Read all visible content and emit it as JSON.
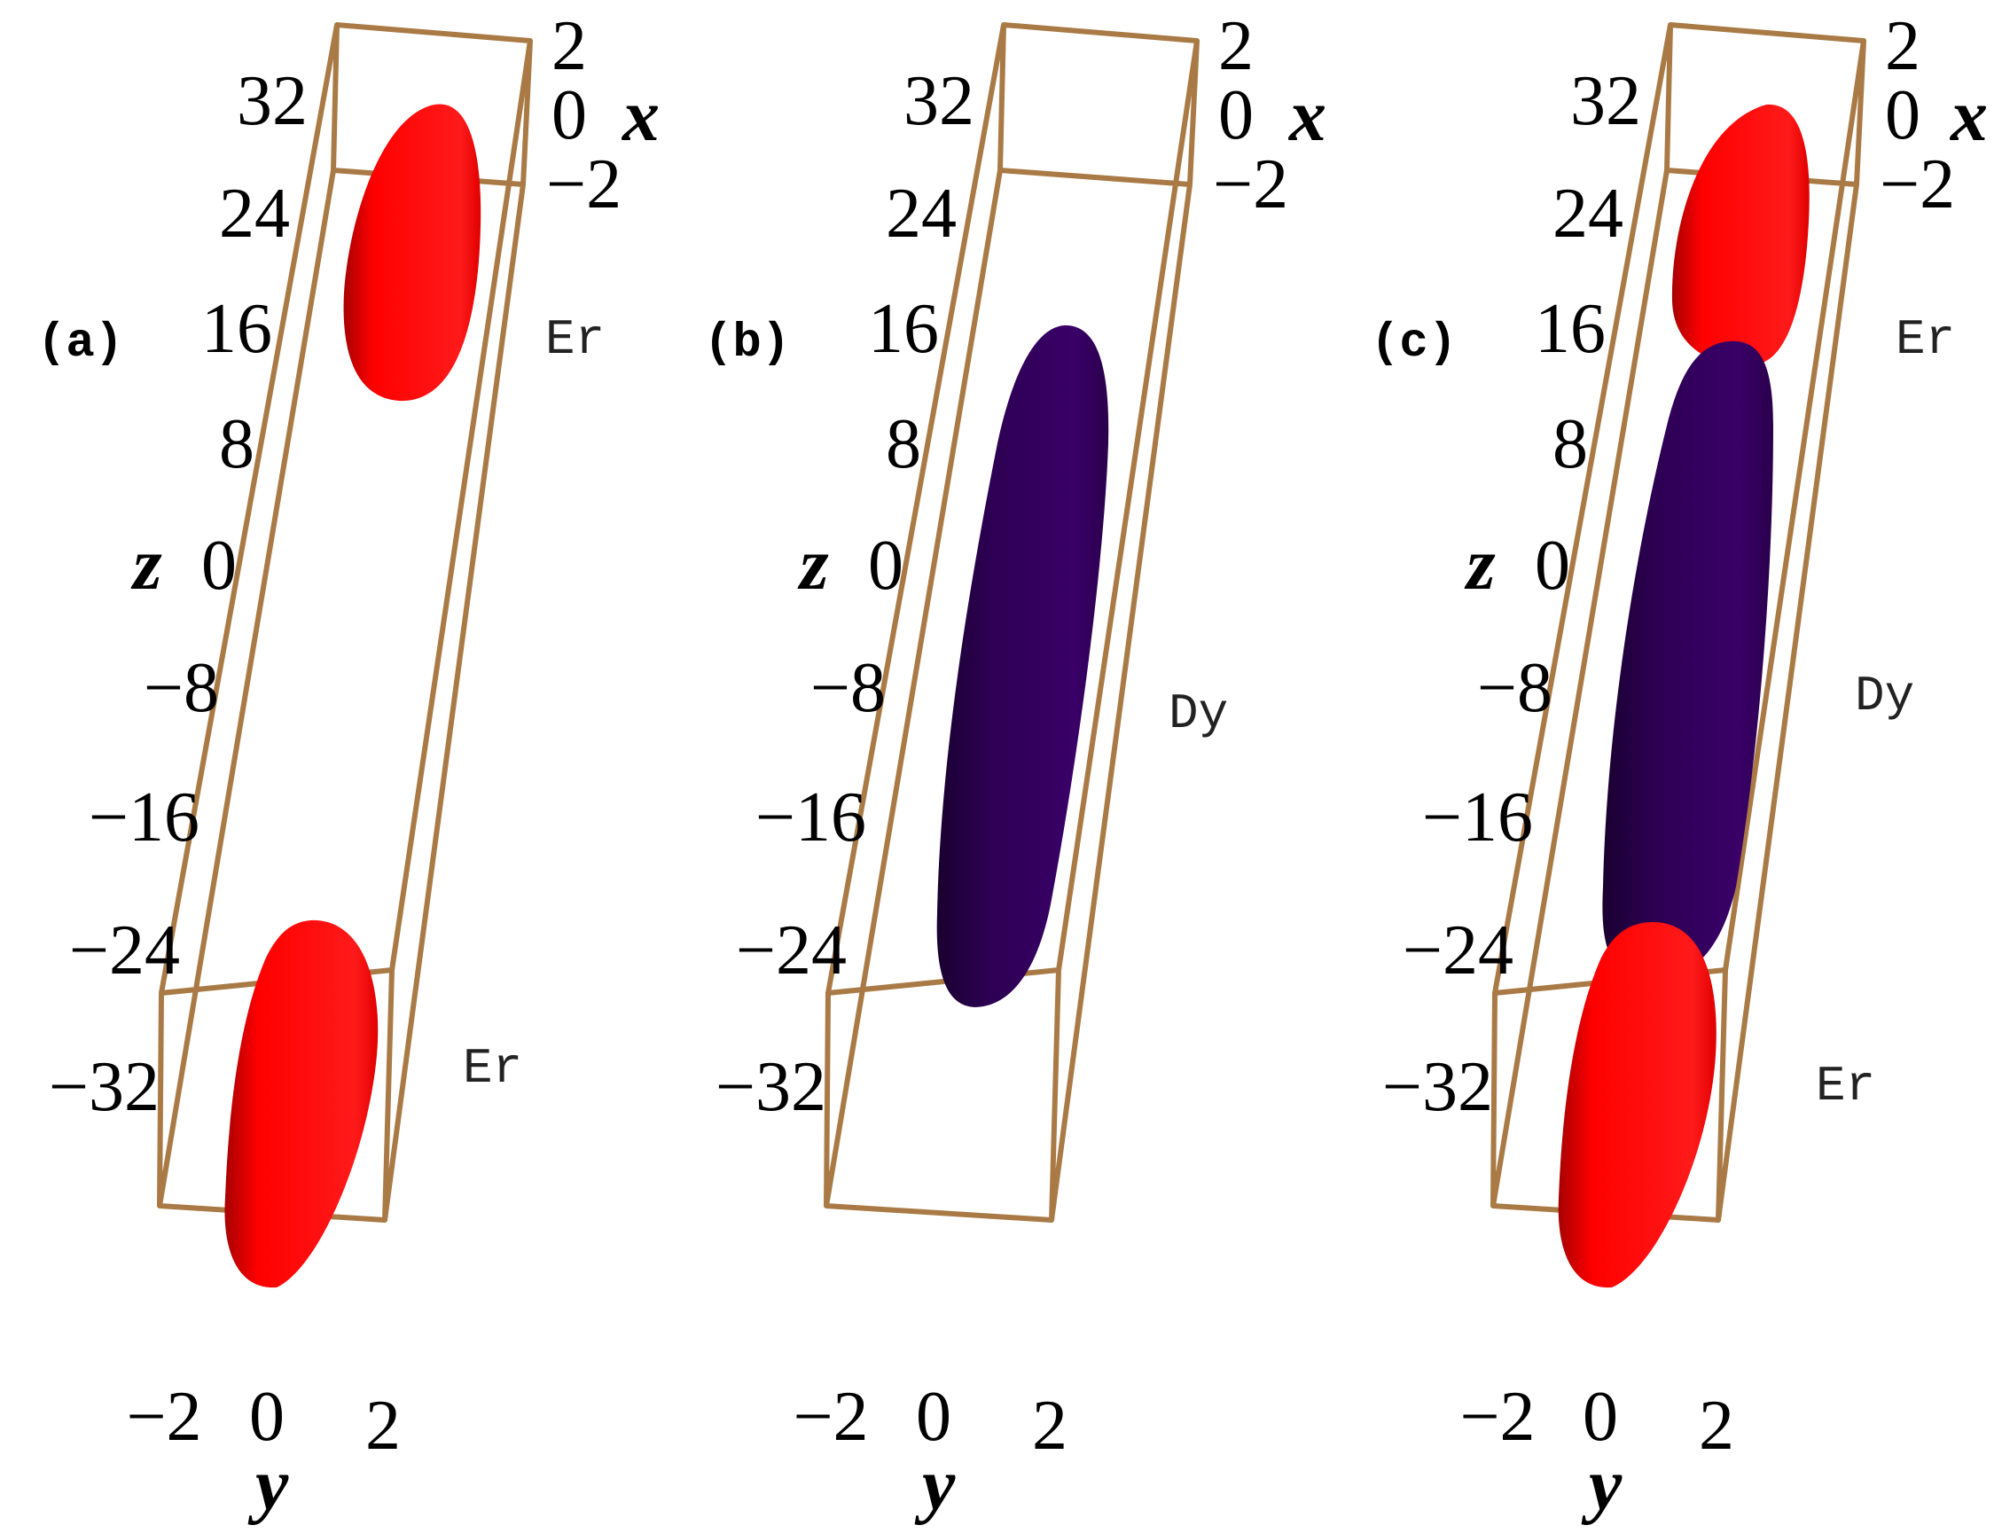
{
  "panels": [
    {
      "label": "(a)",
      "z_ticks": [
        "32",
        "24",
        "16",
        "8",
        "0",
        "−8",
        "−16",
        "−24",
        "−32"
      ],
      "x_ticks": [
        "2",
        "0",
        "−2"
      ],
      "y_ticks": [
        "−2",
        "0",
        "2"
      ],
      "z_label": "z",
      "x_label": "x",
      "y_label": "y",
      "species": [
        {
          "name": "Er",
          "color": "#ff0000",
          "z_range": [
            12,
            32
          ]
        },
        {
          "name": "Er",
          "color": "#ff0000",
          "z_range": [
            -48,
            -24
          ]
        }
      ]
    },
    {
      "label": "(b)",
      "z_ticks": [
        "32",
        "24",
        "16",
        "8",
        "0",
        "−8",
        "−16",
        "−24",
        "−32"
      ],
      "x_ticks": [
        "2",
        "0",
        "−2"
      ],
      "y_ticks": [
        "−2",
        "0",
        "2"
      ],
      "z_label": "z",
      "x_label": "x",
      "y_label": "y",
      "species": [
        {
          "name": "Dy",
          "color": "#33005a",
          "z_range": [
            -28,
            16
          ]
        }
      ]
    },
    {
      "label": "(c)",
      "z_ticks": [
        "32",
        "24",
        "16",
        "8",
        "0",
        "−8",
        "−16",
        "−24",
        "−32"
      ],
      "x_ticks": [
        "2",
        "0",
        "−2"
      ],
      "y_ticks": [
        "−2",
        "0",
        "2"
      ],
      "z_label": "z",
      "x_label": "x",
      "y_label": "y",
      "species": [
        {
          "name": "Er",
          "color": "#ff0000",
          "z_range": [
            16,
            32
          ]
        },
        {
          "name": "Dy",
          "color": "#33005a",
          "z_range": [
            -24,
            16
          ]
        },
        {
          "name": "Er",
          "color": "#ff0000",
          "z_range": [
            -48,
            -24
          ]
        }
      ]
    }
  ],
  "colors": {
    "box": "#a97a45",
    "er": "#ff0000",
    "dy": "#33005a"
  }
}
